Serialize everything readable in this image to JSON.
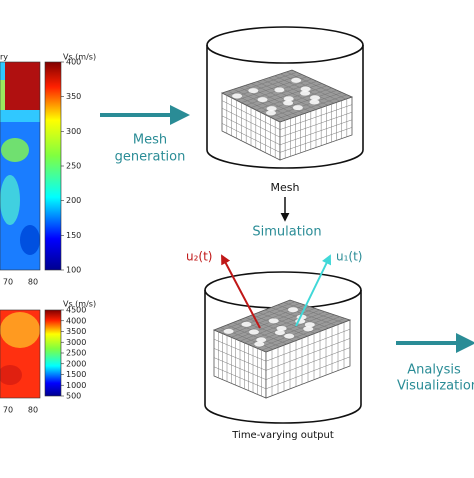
{
  "maps": [
    {
      "title_fragment": "ry",
      "colorbar_label": "Vs (m/s)",
      "colorbar_ticks": [
        "400",
        "350",
        "300",
        "250",
        "200",
        "150",
        "100"
      ],
      "x_ticks": [
        "70",
        "80"
      ]
    },
    {
      "colorbar_label": "Vs (m/s)",
      "colorbar_ticks": [
        "4500",
        "4000",
        "3500",
        "3000",
        "2500",
        "2000",
        "1500",
        "1000",
        "500"
      ],
      "x_ticks": [
        "70",
        "80"
      ]
    }
  ],
  "steps": {
    "mesh_generation": [
      "Mesh",
      "generation"
    ],
    "mesh": "Mesh",
    "simulation": "Simulation",
    "u2": "u₂(t)",
    "u1": "u₁(t)",
    "output": "Time-varying output",
    "analysis": [
      "Analysis",
      "Visualization"
    ]
  }
}
